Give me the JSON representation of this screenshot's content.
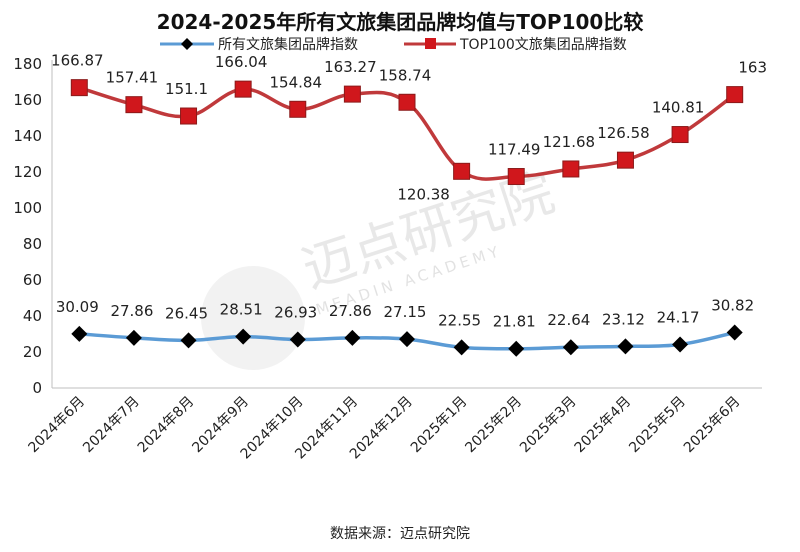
{
  "title": "2024-2025年所有文旅集团品牌均值与TOP100比较",
  "source": "数据来源：迈点研究院",
  "watermark": {
    "main": "迈点研究院",
    "sub": "MEADIN ACADEMY"
  },
  "chart_data": {
    "type": "line",
    "categories": [
      "2024年6月",
      "2024年7月",
      "2024年8月",
      "2024年9月",
      "2024年10月",
      "2024年11月",
      "2024年12月",
      "2025年1月",
      "2025年2月",
      "2025年3月",
      "2025年4月",
      "2025年5月",
      "2025年6月"
    ],
    "series": [
      {
        "name": "所有文旅集团品牌指数",
        "color": "#5b9bd5",
        "marker": "diamond",
        "marker_color": "#000000",
        "values": [
          30.09,
          27.86,
          26.45,
          28.51,
          26.93,
          27.86,
          27.15,
          22.55,
          21.81,
          22.64,
          23.12,
          24.17,
          30.82
        ],
        "labels": [
          "30.09",
          "27.86",
          "26.45",
          "28.51",
          "26.93",
          "27.86",
          "27.15",
          "22.55",
          "21.81",
          "22.64",
          "23.12",
          "24.17",
          "30.82"
        ]
      },
      {
        "name": "TOP100文旅集团品牌指数",
        "color": "#c0393b",
        "marker": "square",
        "marker_color": "#d0171c",
        "values": [
          166.87,
          157.41,
          151.1,
          166.04,
          154.84,
          163.27,
          158.74,
          120.38,
          117.49,
          121.68,
          126.58,
          140.81,
          163
        ],
        "labels": [
          "166.87",
          "157.41",
          "151.1",
          "166.04",
          "154.84",
          "163.27",
          "158.74",
          "120.38",
          "117.49",
          "121.68",
          "126.58",
          "140.81",
          "163"
        ]
      }
    ],
    "yticks": [
      "0",
      "20",
      "40",
      "60",
      "80",
      "100",
      "120",
      "140",
      "160",
      "180"
    ],
    "ylim": [
      0,
      180
    ],
    "grid": false,
    "legend_position": "top"
  }
}
